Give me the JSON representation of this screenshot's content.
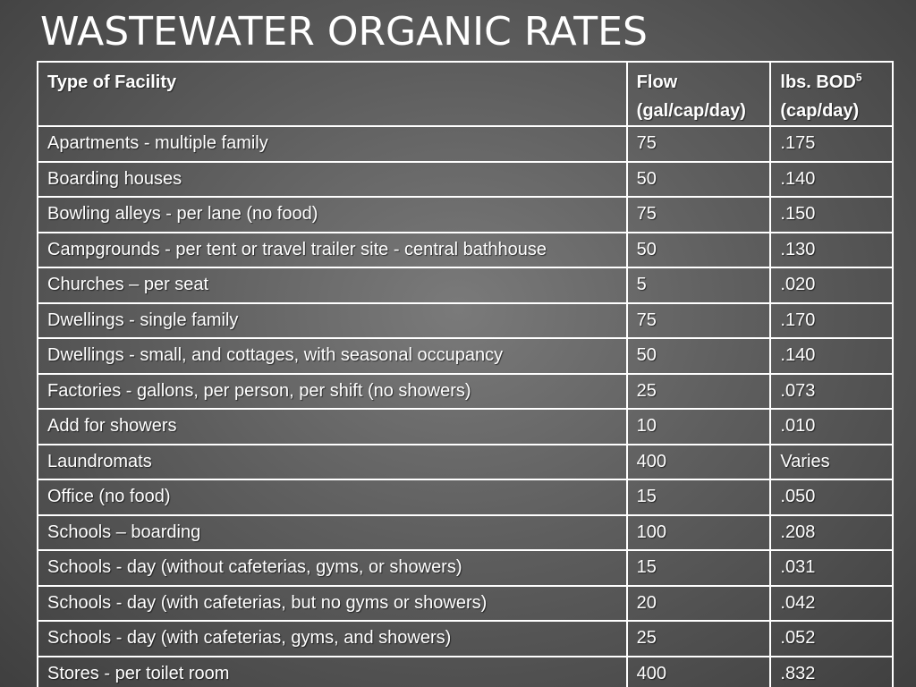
{
  "slide": {
    "title": "WASTEWATER ORGANIC RATES"
  },
  "table": {
    "headers": {
      "facility": "Type of Facility",
      "flow_line1": "Flow",
      "flow_line2": "(gal/cap/day)",
      "bod_line1": "lbs. BOD",
      "bod_superscript": "5",
      "bod_line2": "(cap/day)"
    },
    "rows": [
      {
        "facility": "Apartments - multiple family",
        "flow": "75",
        "bod": ".175"
      },
      {
        "facility": "Boarding houses",
        "flow": "50",
        "bod": ".140"
      },
      {
        "facility": "Bowling alleys - per lane (no food)",
        "flow": "75",
        "bod": ".150"
      },
      {
        "facility": "Campgrounds - per tent or travel trailer site - central bathhouse",
        "flow": "50",
        "bod": ".130"
      },
      {
        "facility": "Churches – per seat",
        "flow": "5",
        "bod": ".020"
      },
      {
        "facility": "Dwellings - single family",
        "flow": "75",
        "bod": ".170"
      },
      {
        "facility": "Dwellings - small, and cottages, with seasonal occupancy",
        "flow": "50",
        "bod": ".140"
      },
      {
        "facility": "Factories - gallons, per person, per shift (no showers)",
        "flow": "25",
        "bod": ".073"
      },
      {
        "facility": "Add for showers",
        "flow": "10",
        "bod": ".010"
      },
      {
        "facility": "Laundromats",
        "flow": "400",
        "bod": "Varies"
      },
      {
        "facility": "Office (no food)",
        "flow": "15",
        "bod": ".050"
      },
      {
        "facility": "Schools – boarding",
        "flow": "100",
        "bod": ".208"
      },
      {
        "facility": "Schools - day (without cafeterias, gyms, or showers)",
        "flow": "15",
        "bod": ".031"
      },
      {
        "facility": "Schools - day (with cafeterias, but no gyms or showers)",
        "flow": "20",
        "bod": ".042"
      },
      {
        "facility": "Schools - day (with cafeterias, gyms, and showers)",
        "flow": "25",
        "bod": ".052"
      },
      {
        "facility": "Stores - per toilet room",
        "flow": "400",
        "bod": ".832"
      }
    ]
  },
  "colors": {
    "text": "#ffffff",
    "grid": "#ffffff",
    "background": "#5e5e5e"
  }
}
